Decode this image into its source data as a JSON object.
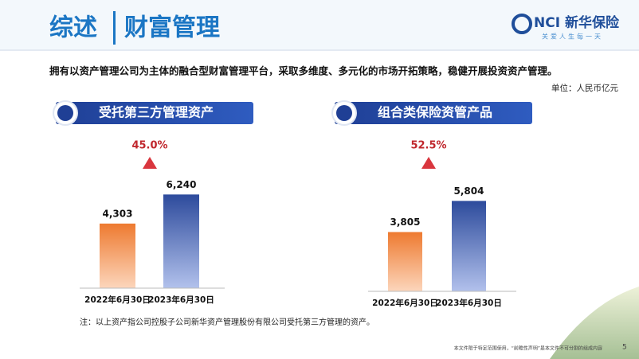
{
  "header": {
    "title": "综述",
    "subtitle": "财富管理",
    "logo": "NCI 新华保险",
    "tagline": "关爱人生每一天"
  },
  "summary": "拥有以资产管理公司为主体的融合型财富管理平台，采取多维度、多元化的市场开拓策略，稳健开展投资资产管理。",
  "unit": "单位：人民币亿元",
  "chart_data": [
    {
      "type": "bar",
      "title": "受托第三方管理资产",
      "annotation": "45.0%",
      "categories": [
        "2022年6月30日",
        "2023年6月30日"
      ],
      "values": [
        4303,
        6240
      ],
      "value_labels": [
        "4,303",
        "6,240"
      ],
      "colors": [
        "#ee7a30",
        "#2d4b9c"
      ],
      "ylim": [
        0,
        7000
      ]
    },
    {
      "type": "bar",
      "title": "组合类保险资管产品",
      "annotation": "52.5%",
      "categories": [
        "2022年6月30日",
        "2023年6月30日"
      ],
      "values": [
        3805,
        5804
      ],
      "value_labels": [
        "3,805",
        "5,804"
      ],
      "colors": [
        "#ee7a30",
        "#2d4b9c"
      ],
      "ylim": [
        0,
        7000
      ]
    }
  ],
  "note": "注：以上资产指公司控股子公司新华资产管理股份有限公司受托第三方管理的资产。",
  "footer": "本文件限于特定范围使用，“前瞻性声明”是本文件不可分割的组成内容",
  "page": "5"
}
